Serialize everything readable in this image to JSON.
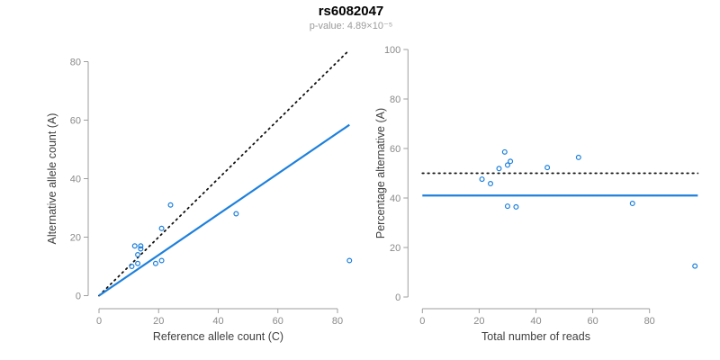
{
  "header": {
    "title": "rs6082047",
    "subtitle": "p-value: 4.89×10⁻⁵"
  },
  "colors": {
    "accent_blue": "#1e80db",
    "dotted_black": "#111111",
    "axis_line_gray": "#9e9e9e",
    "tick_label_gray": "#8a8a8a",
    "axis_title_gray": "#3f3f3f",
    "subtitle_gray": "#9b9b9b"
  },
  "chart_data": [
    {
      "id": "allele-counts",
      "type": "scatter",
      "title": "",
      "xlabel": "Reference allele count (C)",
      "ylabel": "Alternative allele count (A)",
      "xlim": [
        0,
        80
      ],
      "ylim": [
        0,
        80
      ],
      "xticks": [
        0,
        20,
        40,
        60,
        80
      ],
      "yticks": [
        0,
        20,
        40,
        60,
        80
      ],
      "grid": false,
      "legend": false,
      "points": [
        [
          12,
          17
        ],
        [
          14,
          17
        ],
        [
          14,
          16
        ],
        [
          13,
          14
        ],
        [
          11,
          10
        ],
        [
          13,
          11
        ],
        [
          21,
          23
        ],
        [
          24,
          31
        ],
        [
          19,
          11
        ],
        [
          21,
          12
        ],
        [
          46,
          28
        ],
        [
          84,
          12
        ]
      ],
      "lines": [
        {
          "name": "identity-line",
          "dash": "dotted",
          "color_key": "dotted_black",
          "from": [
            0,
            0
          ],
          "to": [
            84,
            84
          ]
        },
        {
          "name": "fit-line",
          "dash": "solid",
          "color_key": "accent_blue",
          "from": [
            0,
            0
          ],
          "to": [
            84,
            58.4
          ]
        }
      ]
    },
    {
      "id": "percentage-alternative",
      "type": "scatter",
      "title": "",
      "xlabel": "Total number of reads",
      "ylabel": "Percentage alternative (A)",
      "xlim": [
        0,
        97
      ],
      "ylim": [
        0,
        100
      ],
      "xticks": [
        0,
        20,
        40,
        60,
        80
      ],
      "yticks": [
        0,
        20,
        40,
        60,
        80,
        100
      ],
      "grid": false,
      "legend": false,
      "points": [
        [
          29,
          58.6
        ],
        [
          31,
          54.8
        ],
        [
          30,
          53.3
        ],
        [
          27,
          51.9
        ],
        [
          21,
          47.6
        ],
        [
          24,
          45.8
        ],
        [
          44,
          52.3
        ],
        [
          55,
          56.4
        ],
        [
          30,
          36.7
        ],
        [
          33,
          36.4
        ],
        [
          74,
          37.8
        ],
        [
          96,
          12.5
        ]
      ],
      "lines": [
        {
          "name": "expected-percentage-line",
          "dash": "dotted",
          "color_key": "dotted_black",
          "from": [
            0,
            50
          ],
          "to": [
            97,
            50
          ]
        },
        {
          "name": "observed-percentage-line",
          "dash": "solid",
          "color_key": "accent_blue",
          "from": [
            0,
            41
          ],
          "to": [
            97,
            41
          ]
        }
      ]
    }
  ]
}
